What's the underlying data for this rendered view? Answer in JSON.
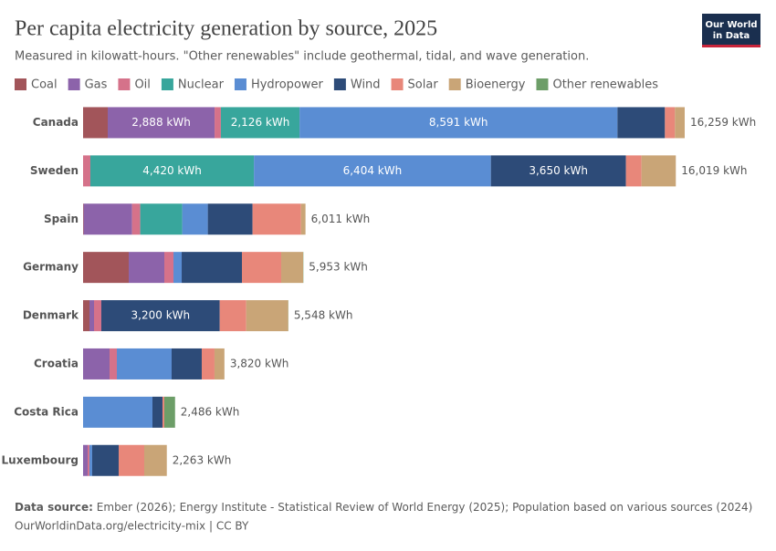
{
  "chart_data": {
    "type": "stacked-bar-horizontal",
    "title": "Per capita electricity generation by source, 2025",
    "subtitle": "Measured in kilowatt-hours. \"Other renewables\" include geothermal, tidal, and wave generation.",
    "logo": [
      "Our World",
      "in Data"
    ],
    "source_label": "Data source:",
    "source": "Ember (2026); Energy Institute - Statistical Review of World Energy (2025); Population based on various sources (2024)",
    "note": "OurWorldinData.org/electricity-mix | CC BY",
    "categories": [
      "Canada",
      "Sweden",
      "Spain",
      "Germany",
      "Denmark",
      "Croatia",
      "Costa Rica",
      "Luxembourg"
    ],
    "xlim": [
      0,
      16259
    ],
    "series": [
      {
        "name": "Coal",
        "color": "#a2555a",
        "values": [
          666,
          0,
          15,
          1234,
          173,
          0,
          0,
          0
        ],
        "value_labels": [
          null,
          null,
          null,
          null,
          null,
          null,
          null,
          null
        ]
      },
      {
        "name": "Gas",
        "color": "#8c63aa",
        "values": [
          2888,
          0,
          1308,
          962,
          123,
          716,
          0,
          123
        ],
        "value_labels": [
          "2,888 kWh",
          null,
          null,
          null,
          null,
          null,
          null,
          null
        ]
      },
      {
        "name": "Oil",
        "color": "#d5728a",
        "values": [
          170,
          197,
          222,
          247,
          197,
          197,
          0,
          49
        ],
        "value_labels": [
          null,
          null,
          null,
          null,
          null,
          null,
          null,
          null
        ]
      },
      {
        "name": "Nuclear",
        "color": "#38a69c",
        "values": [
          2126,
          4420,
          1135,
          0,
          0,
          0,
          0,
          0
        ],
        "value_labels": [
          "2,126 kWh",
          "4,420 kWh",
          null,
          null,
          null,
          null,
          null,
          null
        ]
      },
      {
        "name": "Hydropower",
        "color": "#5a8dd3",
        "values": [
          8591,
          6404,
          691,
          222,
          0,
          1480,
          1875,
          74
        ],
        "value_labels": [
          "8,591 kWh",
          "6,404 kWh",
          null,
          null,
          null,
          null,
          null,
          null
        ]
      },
      {
        "name": "Wind",
        "color": "#2d4b78",
        "values": [
          1283,
          3650,
          1209,
          1628,
          3200,
          814,
          271,
          716
        ],
        "value_labels": [
          null,
          "3,650 kWh",
          null,
          null,
          "3,200 kWh",
          null,
          null,
          null
        ]
      },
      {
        "name": "Solar",
        "color": "#e8877a",
        "values": [
          271,
          420,
          1308,
          1061,
          716,
          345,
          49,
          691
        ],
        "value_labels": [
          null,
          null,
          null,
          null,
          null,
          null,
          null,
          null
        ]
      },
      {
        "name": "Bioenergy",
        "color": "#c9a577",
        "values": [
          264,
          928,
          123,
          592,
          1135,
          268,
          0,
          610
        ],
        "value_labels": [
          null,
          null,
          null,
          null,
          null,
          null,
          null,
          null
        ]
      },
      {
        "name": "Other renewables",
        "color": "#6d9e68",
        "values": [
          0,
          0,
          0,
          7,
          4,
          0,
          291,
          0
        ],
        "value_labels": [
          null,
          null,
          null,
          null,
          null,
          null,
          null,
          null
        ]
      }
    ],
    "totals": {
      "values": [
        16259,
        16019,
        6011,
        5953,
        5548,
        3820,
        2486,
        2263
      ],
      "value_labels": [
        "16,259 kWh",
        "16,019 kWh",
        "6,011 kWh",
        "5,953 kWh",
        "5,548 kWh",
        "3,820 kWh",
        "2,486 kWh",
        "2,263 kWh"
      ]
    }
  }
}
